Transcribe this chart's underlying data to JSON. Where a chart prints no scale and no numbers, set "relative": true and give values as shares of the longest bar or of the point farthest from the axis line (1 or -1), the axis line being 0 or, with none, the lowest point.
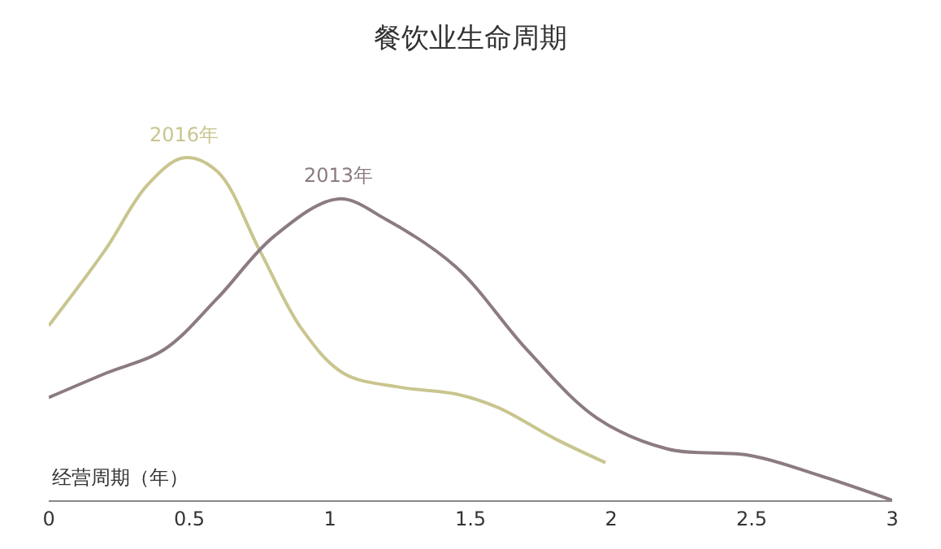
{
  "chart_data": {
    "type": "line",
    "title": "餐饮业生命周期",
    "xlabel": "经营周期（年）",
    "relative": true,
    "xlim": [
      0,
      3
    ],
    "xticks": [
      0,
      0.5,
      1,
      1.5,
      2,
      2.5,
      3
    ],
    "marker": "none",
    "line_style": "solid",
    "series": [
      {
        "color": "#c9c58e",
        "x": [
          0,
          0.2,
          0.35,
          0.48,
          0.6,
          0.75,
          0.9,
          1.05,
          1.25,
          1.45,
          1.6,
          1.8,
          1.98
        ],
        "values": [
          0.51,
          0.73,
          0.92,
          1.0,
          0.96,
          0.73,
          0.5,
          0.37,
          0.33,
          0.31,
          0.27,
          0.18,
          0.11
        ]
      },
      {
        "color": "#8c7b82",
        "x": [
          0,
          0.2,
          0.41,
          0.6,
          0.8,
          1.03,
          1.2,
          1.45,
          1.7,
          1.95,
          2.2,
          2.5,
          2.75,
          3
        ],
        "values": [
          0.3,
          0.37,
          0.44,
          0.59,
          0.77,
          0.88,
          0.82,
          0.68,
          0.44,
          0.24,
          0.15,
          0.13,
          0.07,
          0
        ]
      }
    ],
    "annotations": [
      {
        "text": "2016年",
        "x": 0.48,
        "y": 1.0
      },
      {
        "text": "2013年",
        "x": 1.03,
        "y": 0.88
      }
    ]
  }
}
